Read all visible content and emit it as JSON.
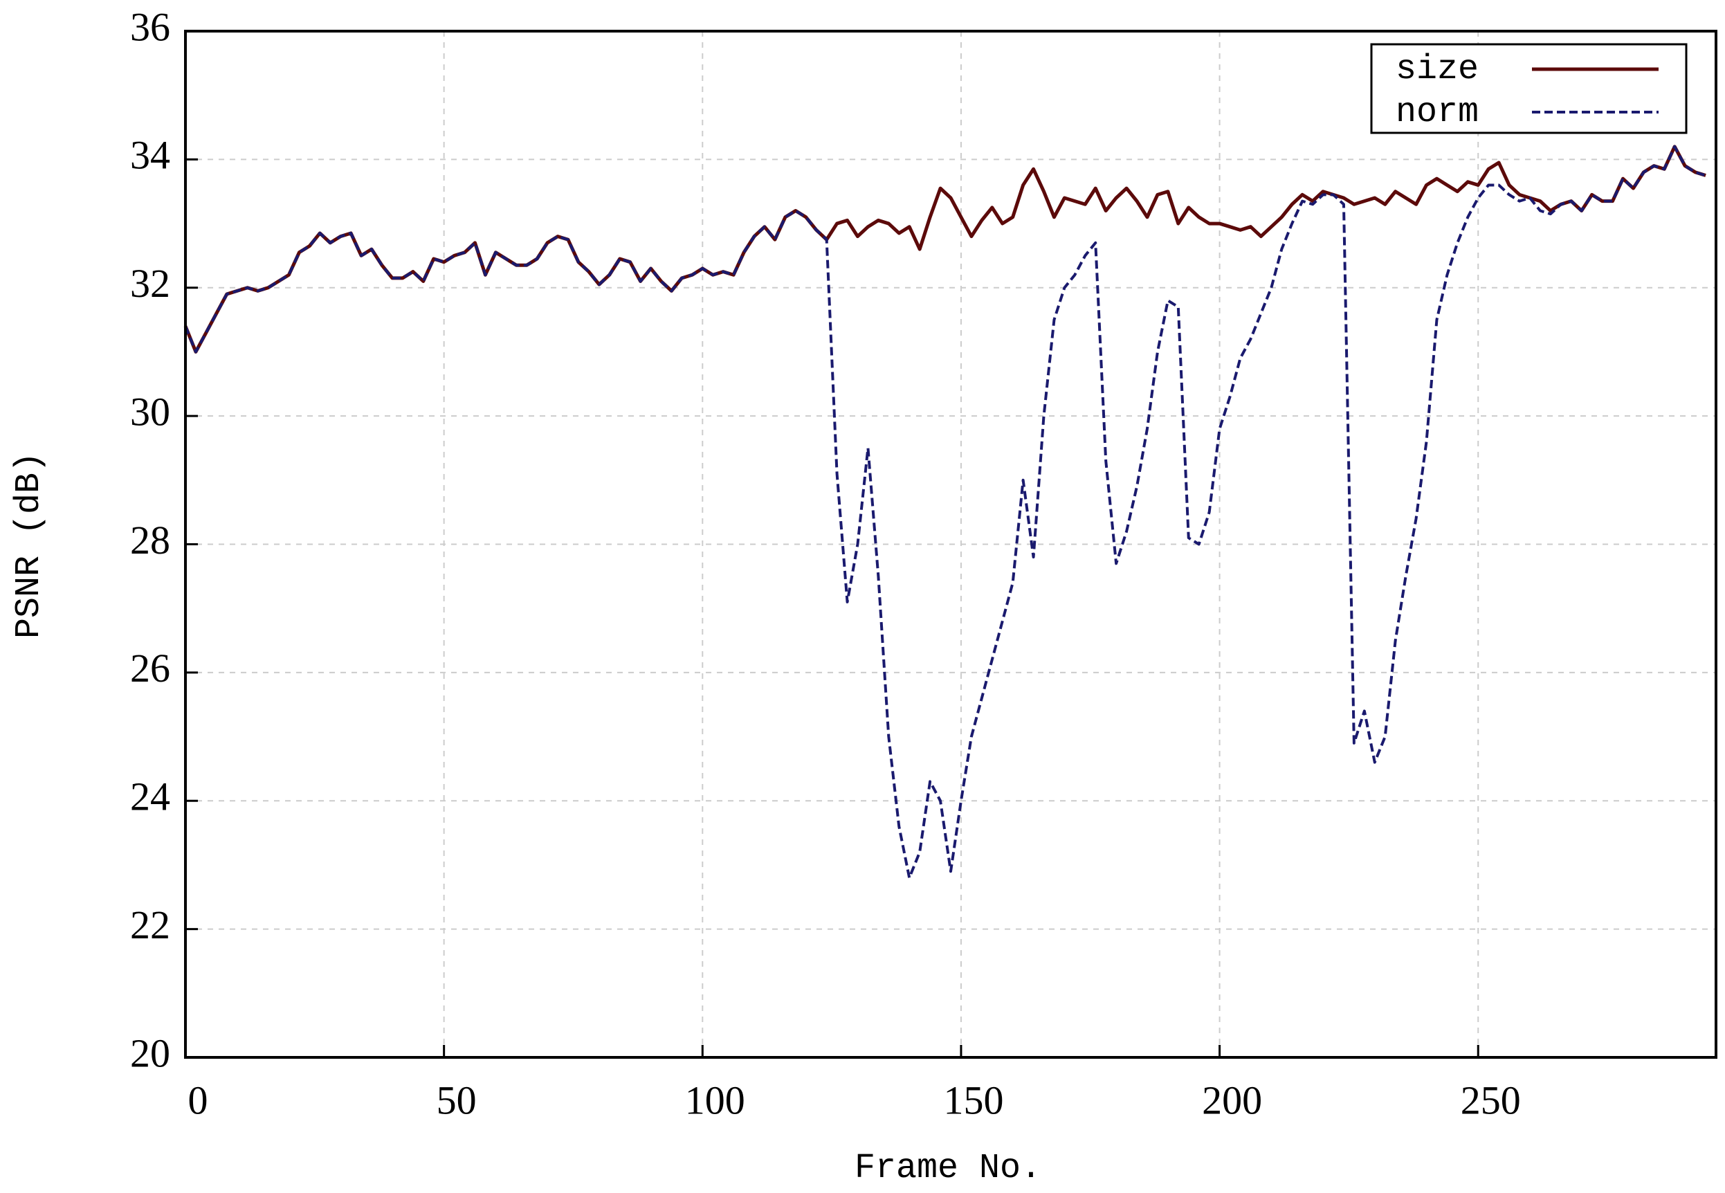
{
  "chart_data": {
    "type": "line",
    "x_label": "Frame No.",
    "y_label": "PSNR (dB)",
    "x": [
      0,
      2,
      4,
      6,
      8,
      10,
      12,
      14,
      16,
      18,
      20,
      22,
      24,
      26,
      28,
      30,
      32,
      34,
      36,
      38,
      40,
      42,
      44,
      46,
      48,
      50,
      52,
      54,
      56,
      58,
      60,
      62,
      64,
      66,
      68,
      70,
      72,
      74,
      76,
      78,
      80,
      82,
      84,
      86,
      88,
      90,
      92,
      94,
      96,
      98,
      100,
      102,
      104,
      106,
      108,
      110,
      112,
      114,
      116,
      118,
      120,
      122,
      124,
      126,
      128,
      130,
      132,
      134,
      136,
      138,
      140,
      142,
      144,
      146,
      148,
      150,
      152,
      154,
      156,
      158,
      160,
      162,
      164,
      166,
      168,
      170,
      172,
      174,
      176,
      178,
      180,
      182,
      184,
      186,
      188,
      190,
      192,
      194,
      196,
      198,
      200,
      202,
      204,
      206,
      208,
      210,
      212,
      214,
      216,
      218,
      220,
      222,
      224,
      226,
      228,
      230,
      232,
      234,
      236,
      238,
      240,
      242,
      244,
      246,
      248,
      250,
      252,
      254,
      256,
      258,
      260,
      262,
      264,
      266,
      268,
      270,
      272,
      274,
      276,
      278,
      280,
      282,
      284,
      286,
      288,
      290,
      292,
      294
    ],
    "series": [
      {
        "name": "size",
        "color": "#5c0a0a",
        "dashed": false,
        "values": [
          31.4,
          31.0,
          31.3,
          31.6,
          31.9,
          31.95,
          32.0,
          31.95,
          32.0,
          32.1,
          32.2,
          32.55,
          32.65,
          32.85,
          32.7,
          32.8,
          32.85,
          32.5,
          32.6,
          32.35,
          32.15,
          32.15,
          32.25,
          32.1,
          32.45,
          32.4,
          32.5,
          32.55,
          32.7,
          32.2,
          32.55,
          32.45,
          32.35,
          32.35,
          32.45,
          32.7,
          32.8,
          32.75,
          32.4,
          32.25,
          32.05,
          32.2,
          32.45,
          32.4,
          32.1,
          32.3,
          32.1,
          31.95,
          32.15,
          32.2,
          32.3,
          32.2,
          32.25,
          32.2,
          32.55,
          32.8,
          32.95,
          32.75,
          33.1,
          33.2,
          33.1,
          32.9,
          32.75,
          33.0,
          33.05,
          32.8,
          32.95,
          33.05,
          33.0,
          32.85,
          32.95,
          32.6,
          33.1,
          33.55,
          33.4,
          33.1,
          32.8,
          33.05,
          33.25,
          33.0,
          33.1,
          33.6,
          33.85,
          33.5,
          33.1,
          33.4,
          33.35,
          33.3,
          33.55,
          33.2,
          33.4,
          33.55,
          33.35,
          33.1,
          33.45,
          33.5,
          33.0,
          33.25,
          33.1,
          33.0,
          33.0,
          32.95,
          32.9,
          32.95,
          32.8,
          32.95,
          33.1,
          33.3,
          33.45,
          33.35,
          33.5,
          33.45,
          33.4,
          33.3,
          33.35,
          33.4,
          33.3,
          33.5,
          33.4,
          33.3,
          33.6,
          33.7,
          33.6,
          33.5,
          33.65,
          33.6,
          33.85,
          33.95,
          33.6,
          33.45,
          33.4,
          33.35,
          33.2,
          33.3,
          33.35,
          33.2,
          33.45,
          33.35,
          33.35,
          33.7,
          33.55,
          33.8,
          33.9,
          33.85,
          34.2,
          33.9,
          33.8,
          33.75
        ]
      },
      {
        "name": "norm",
        "color": "#1a1a6e",
        "dashed": true,
        "values": [
          31.4,
          31.0,
          31.3,
          31.6,
          31.9,
          31.95,
          32.0,
          31.95,
          32.0,
          32.1,
          32.2,
          32.55,
          32.65,
          32.85,
          32.7,
          32.8,
          32.85,
          32.5,
          32.6,
          32.35,
          32.15,
          32.15,
          32.25,
          32.1,
          32.45,
          32.4,
          32.5,
          32.55,
          32.7,
          32.2,
          32.55,
          32.45,
          32.35,
          32.35,
          32.45,
          32.7,
          32.8,
          32.75,
          32.4,
          32.25,
          32.05,
          32.2,
          32.45,
          32.4,
          32.1,
          32.3,
          32.1,
          31.95,
          32.15,
          32.2,
          32.3,
          32.2,
          32.25,
          32.2,
          32.55,
          32.8,
          32.95,
          32.75,
          33.1,
          33.2,
          33.1,
          32.9,
          32.75,
          29.1,
          27.1,
          28.0,
          29.5,
          27.5,
          25.0,
          23.6,
          22.8,
          23.2,
          24.3,
          24.0,
          22.9,
          24.0,
          25.0,
          25.6,
          26.2,
          26.8,
          27.4,
          29.0,
          27.8,
          30.0,
          31.5,
          32.0,
          32.2,
          32.5,
          32.7,
          29.3,
          27.7,
          28.2,
          28.9,
          29.8,
          31.0,
          31.8,
          31.7,
          28.1,
          28.0,
          28.5,
          29.8,
          30.3,
          30.9,
          31.2,
          31.6,
          32.0,
          32.6,
          33.0,
          33.35,
          33.3,
          33.45,
          33.45,
          33.3,
          24.9,
          25.4,
          24.6,
          25.0,
          26.5,
          27.5,
          28.4,
          29.6,
          31.5,
          32.2,
          32.7,
          33.1,
          33.4,
          33.6,
          33.6,
          33.45,
          33.35,
          33.4,
          33.2,
          33.15,
          33.3,
          33.35,
          33.2,
          33.45,
          33.35,
          33.35,
          33.7,
          33.55,
          33.8,
          33.9,
          33.85,
          34.2,
          33.9,
          33.8,
          33.75
        ]
      }
    ],
    "xlim": [
      0,
      296
    ],
    "ylim": [
      20,
      36
    ],
    "xticks": [
      0,
      50,
      100,
      150,
      200,
      250
    ],
    "yticks": [
      20,
      22,
      24,
      26,
      28,
      30,
      32,
      34,
      36
    ],
    "grid": true,
    "legend": "upper right"
  }
}
